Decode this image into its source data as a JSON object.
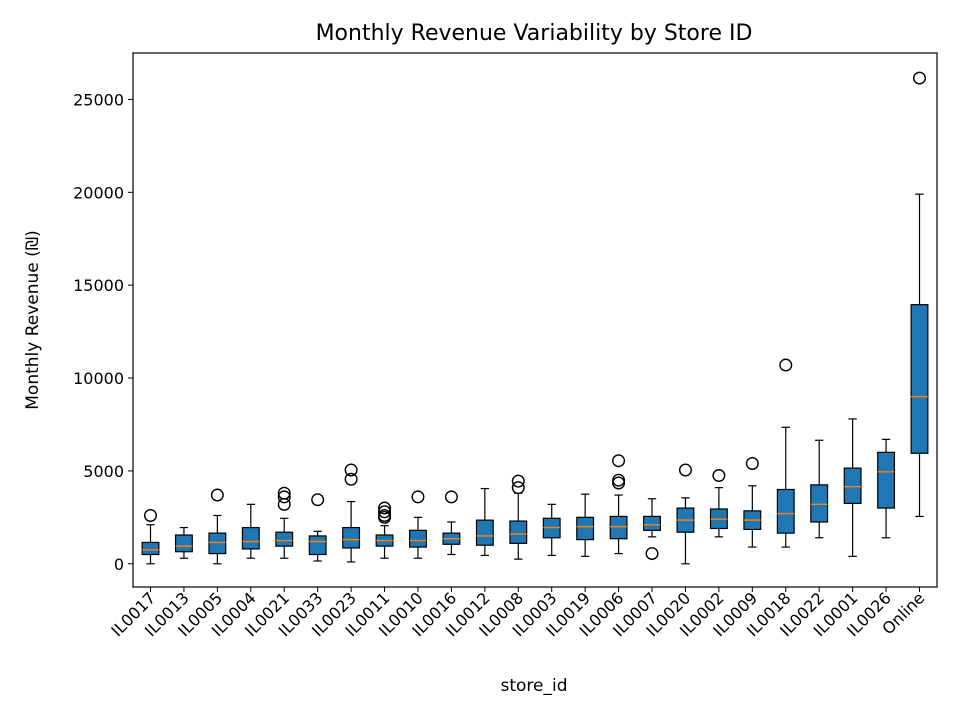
{
  "chart_data": {
    "type": "box",
    "title": "Monthly Revenue Variability by Store ID",
    "xlabel": "store_id",
    "ylabel": "Monthly Revenue (₪)",
    "ylim": [
      -1250,
      27500
    ],
    "yticks": [
      0,
      5000,
      10000,
      15000,
      20000,
      25000
    ],
    "grid": false,
    "colors": {
      "box_fill": "#1f77b4",
      "median": "#ff7f0e",
      "edge": "#000000"
    },
    "boxes": [
      {
        "label": "IL0017",
        "whisker_low": 0,
        "q1": 500,
        "median": 750,
        "q3": 1150,
        "whisker_high": 2100,
        "outliers": [
          2600
        ]
      },
      {
        "label": "IL0013",
        "whisker_low": 300,
        "q1": 650,
        "median": 950,
        "q3": 1550,
        "whisker_high": 1950,
        "outliers": []
      },
      {
        "label": "IL0005",
        "whisker_low": 0,
        "q1": 550,
        "median": 1150,
        "q3": 1650,
        "whisker_high": 2600,
        "outliers": [
          3700
        ]
      },
      {
        "label": "IL0004",
        "whisker_low": 300,
        "q1": 800,
        "median": 1200,
        "q3": 1950,
        "whisker_high": 3200,
        "outliers": []
      },
      {
        "label": "IL0021",
        "whisker_low": 300,
        "q1": 950,
        "median": 1250,
        "q3": 1700,
        "whisker_high": 2450,
        "outliers": [
          3200,
          3600,
          3800
        ]
      },
      {
        "label": "IL0033",
        "whisker_low": 150,
        "q1": 500,
        "median": 1200,
        "q3": 1500,
        "whisker_high": 1750,
        "outliers": [
          3450
        ]
      },
      {
        "label": "IL0023",
        "whisker_low": 100,
        "q1": 850,
        "median": 1300,
        "q3": 1950,
        "whisker_high": 3350,
        "outliers": [
          4550,
          5050
        ]
      },
      {
        "label": "IL0011",
        "whisker_low": 300,
        "q1": 950,
        "median": 1250,
        "q3": 1550,
        "whisker_high": 2050,
        "outliers": [
          2500,
          2600,
          2800,
          3000
        ]
      },
      {
        "label": "IL0010",
        "whisker_low": 300,
        "q1": 900,
        "median": 1250,
        "q3": 1800,
        "whisker_high": 2500,
        "outliers": [
          3600
        ]
      },
      {
        "label": "IL0016",
        "whisker_low": 500,
        "q1": 1050,
        "median": 1350,
        "q3": 1650,
        "whisker_high": 2250,
        "outliers": [
          3600
        ]
      },
      {
        "label": "IL0012",
        "whisker_low": 450,
        "q1": 1000,
        "median": 1500,
        "q3": 2350,
        "whisker_high": 4050,
        "outliers": []
      },
      {
        "label": "IL0008",
        "whisker_low": 250,
        "q1": 1100,
        "median": 1600,
        "q3": 2300,
        "whisker_high": 3800,
        "outliers": [
          4100,
          4450
        ]
      },
      {
        "label": "IL0003",
        "whisker_low": 450,
        "q1": 1400,
        "median": 1950,
        "q3": 2450,
        "whisker_high": 3200,
        "outliers": []
      },
      {
        "label": "IL0019",
        "whisker_low": 400,
        "q1": 1300,
        "median": 2000,
        "q3": 2500,
        "whisker_high": 3750,
        "outliers": []
      },
      {
        "label": "IL0006",
        "whisker_low": 550,
        "q1": 1350,
        "median": 2000,
        "q3": 2550,
        "whisker_high": 3700,
        "outliers": [
          4350,
          4500,
          5550
        ]
      },
      {
        "label": "IL0007",
        "whisker_low": 1450,
        "q1": 1800,
        "median": 2100,
        "q3": 2550,
        "whisker_high": 3500,
        "outliers": [
          550
        ]
      },
      {
        "label": "IL0020",
        "whisker_low": 0,
        "q1": 1700,
        "median": 2350,
        "q3": 3000,
        "whisker_high": 3550,
        "outliers": [
          5050
        ]
      },
      {
        "label": "IL0002",
        "whisker_low": 1450,
        "q1": 1900,
        "median": 2400,
        "q3": 2950,
        "whisker_high": 4100,
        "outliers": [
          4750
        ]
      },
      {
        "label": "IL0009",
        "whisker_low": 900,
        "q1": 1850,
        "median": 2350,
        "q3": 2850,
        "whisker_high": 4200,
        "outliers": [
          5400
        ]
      },
      {
        "label": "IL0018",
        "whisker_low": 900,
        "q1": 1650,
        "median": 2700,
        "q3": 4000,
        "whisker_high": 7350,
        "outliers": [
          10700
        ]
      },
      {
        "label": "IL0022",
        "whisker_low": 1400,
        "q1": 2250,
        "median": 3200,
        "q3": 4250,
        "whisker_high": 6650,
        "outliers": []
      },
      {
        "label": "IL0001",
        "whisker_low": 400,
        "q1": 3250,
        "median": 4150,
        "q3": 5150,
        "whisker_high": 7800,
        "outliers": []
      },
      {
        "label": "IL0026",
        "whisker_low": 1400,
        "q1": 3000,
        "median": 4950,
        "q3": 6000,
        "whisker_high": 6700,
        "outliers": []
      },
      {
        "label": "Online",
        "whisker_low": 2550,
        "q1": 5950,
        "median": 9000,
        "q3": 13950,
        "whisker_high": 19900,
        "outliers": [
          26150
        ]
      }
    ]
  }
}
